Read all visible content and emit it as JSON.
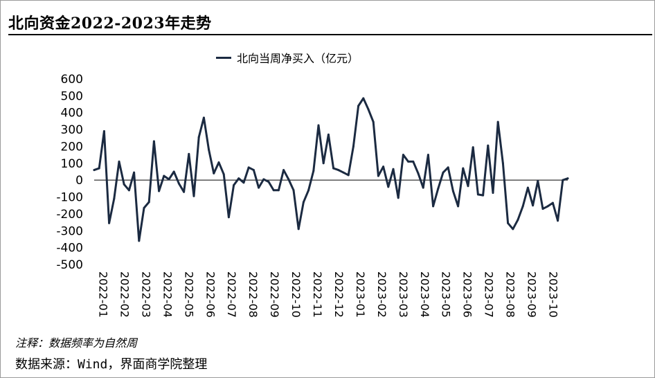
{
  "title": "北向资金2022-2023年走势",
  "note": "注释：数据频率为自然周",
  "source": "数据来源：Wind，界面商学院整理",
  "colors": {
    "line": "#1b2a41",
    "axis": "#000000"
  },
  "chart_data": {
    "type": "line",
    "ylim": [
      -500,
      600
    ],
    "yticks": [
      600,
      500,
      400,
      300,
      200,
      100,
      0,
      -100,
      -200,
      -300,
      -400,
      -500
    ],
    "xticks": [
      "2022-01",
      "2022-02",
      "2022-03",
      "2022-04",
      "2022-05",
      "2022-06",
      "2022-07",
      "2022-08",
      "2022-09",
      "2022-10",
      "2022-11",
      "2022-12",
      "2023-01",
      "2023-02",
      "2023-03",
      "2023-04",
      "2023-05",
      "2023-06",
      "2023-07",
      "2023-08",
      "2023-09",
      "2023-10"
    ],
    "series": [
      {
        "name": "北向当周净买入（亿元）",
        "values": [
          60,
          70,
          290,
          -255,
          -110,
          110,
          -25,
          -60,
          45,
          -360,
          -165,
          -130,
          230,
          -65,
          25,
          5,
          50,
          -20,
          -70,
          155,
          -95,
          255,
          370,
          180,
          40,
          105,
          35,
          -220,
          -30,
          10,
          -15,
          75,
          60,
          -45,
          5,
          -10,
          -60,
          -60,
          60,
          5,
          -60,
          -290,
          -130,
          -60,
          55,
          325,
          100,
          270,
          70,
          60,
          45,
          30,
          200,
          440,
          485,
          420,
          345,
          25,
          80,
          -40,
          65,
          -105,
          150,
          110,
          110,
          40,
          -45,
          150,
          -155,
          -50,
          45,
          75,
          -65,
          -155,
          70,
          -35,
          195,
          -85,
          -90,
          205,
          -75,
          345,
          100,
          -255,
          -290,
          -235,
          -155,
          -45,
          -150,
          -5,
          -170,
          -155,
          -135,
          -240,
          0,
          10
        ]
      }
    ]
  }
}
